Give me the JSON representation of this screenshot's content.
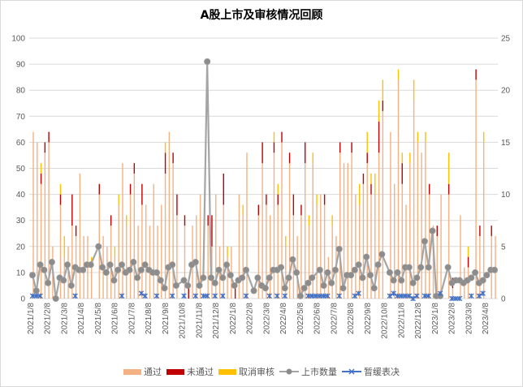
{
  "chart_data": {
    "type": "bar",
    "title": "A股上市及审核情况回顾",
    "left_axis": {
      "ticks": [
        "0",
        "10",
        "20",
        "30",
        "40",
        "50",
        "60",
        "70",
        "80",
        "90",
        "100"
      ],
      "range": [
        0,
        100
      ]
    },
    "right_axis": {
      "ticks": [
        "0",
        "5",
        "10",
        "15",
        "20",
        "25"
      ],
      "range": [
        0,
        25
      ]
    },
    "x_tick_labels": [
      "2021/1/8",
      "2021/2/8",
      "2021/3/8",
      "2021/4/8",
      "2021/5/8",
      "2021/6/8",
      "2021/7/8",
      "2021/8/8",
      "2021/9/8",
      "2021/10/8",
      "2021/11/8",
      "2021/12/8",
      "2022/1/8",
      "2022/2/8",
      "2022/3/8",
      "2022/4/8",
      "2022/5/8",
      "2022/6/8",
      "2022/7/8",
      "2022/8/8",
      "2022/9/8",
      "2022/10/8",
      "2022/11/8",
      "2022/12/8",
      "2023/1/8",
      "2023/2/8",
      "2023/3/8",
      "2023/4/8"
    ],
    "legend": [
      "通过",
      "未通过",
      "取消审核",
      "上市数量",
      "暂缓表决"
    ],
    "legend_placement": "bottom",
    "grid": true,
    "colors": {
      "pass": "#F4B183",
      "fail": "#C00000",
      "cancel": "#FFC000",
      "listed": "#A5A5A5",
      "listed_marker": "#8C8C8C",
      "suspended": "#4472C4"
    },
    "series": [
      {
        "name": "通过",
        "axis": "right",
        "stack": true,
        "values": [
          16,
          15,
          11,
          14,
          15,
          5,
          0,
          9,
          4,
          5,
          7,
          6,
          12,
          6,
          6,
          3,
          0,
          10,
          6,
          5,
          7,
          4,
          9,
          13,
          7,
          10,
          12,
          7,
          9,
          9,
          7,
          11,
          7,
          9,
          12,
          16,
          13,
          8,
          0,
          7,
          0,
          7,
          8,
          10,
          0,
          7,
          5,
          10,
          5,
          9,
          4,
          5,
          0,
          10,
          8,
          14,
          0,
          0,
          8,
          13,
          9,
          8,
          14,
          9,
          15,
          5,
          13,
          8,
          6,
          8,
          13,
          7,
          13,
          9,
          10,
          9,
          4,
          7,
          6,
          14,
          13,
          13,
          14,
          10,
          9,
          11,
          13,
          10,
          10,
          14,
          18,
          0,
          16,
          11,
          21,
          11,
          9,
          13,
          19,
          15,
          14,
          15,
          10,
          7,
          6,
          10,
          0,
          10,
          1,
          0,
          8,
          3,
          3,
          0,
          21,
          6,
          15,
          0,
          6,
          6
        ]
      },
      {
        "name": "未通过",
        "axis": "right",
        "stack": true,
        "values": [
          0,
          0,
          1,
          1,
          1,
          0,
          0,
          1,
          0,
          0,
          3,
          1,
          0,
          0,
          0,
          0,
          0,
          1,
          0,
          0,
          1,
          0,
          0,
          0,
          0,
          1,
          1,
          0,
          2,
          0,
          0,
          0,
          0,
          0,
          2,
          0,
          1,
          2,
          0,
          1,
          1,
          0,
          0,
          0,
          0,
          1,
          3,
          0,
          0,
          3,
          0,
          0,
          1,
          0,
          0,
          0,
          0,
          0,
          1,
          2,
          1,
          0,
          1,
          1,
          1,
          0,
          1,
          2,
          0,
          1,
          2,
          0,
          0,
          0,
          0,
          1,
          0,
          0,
          0,
          1,
          0,
          0,
          1,
          0,
          0,
          1,
          1,
          1,
          0,
          3,
          1,
          0,
          0,
          0,
          0,
          2,
          0,
          0,
          0,
          0,
          0,
          0,
          1,
          0,
          1,
          0,
          0,
          1,
          1,
          0,
          0,
          0,
          1,
          0,
          1,
          1,
          0,
          0,
          1,
          0
        ]
      },
      {
        "name": "取消审核",
        "axis": "right",
        "stack": true,
        "values": [
          0,
          0,
          1,
          0,
          0,
          0,
          0,
          1,
          2,
          0,
          0,
          0,
          0,
          0,
          0,
          1,
          0,
          0,
          0,
          0,
          0,
          1,
          1,
          0,
          1,
          0,
          0,
          0,
          0,
          0,
          0,
          0,
          0,
          0,
          1,
          0,
          0,
          0,
          0,
          0,
          0,
          0,
          0,
          0,
          0,
          0,
          0,
          0,
          0,
          0,
          1,
          0,
          0,
          0,
          1,
          0,
          0,
          0,
          0,
          0,
          0,
          0,
          1,
          1,
          0,
          1,
          0,
          0,
          0,
          0,
          0,
          1,
          1,
          1,
          0,
          0,
          0,
          1,
          0,
          0,
          0,
          0,
          0,
          0,
          2,
          0,
          2,
          1,
          2,
          2,
          2,
          0,
          0,
          0,
          1,
          1,
          0,
          1,
          2,
          1,
          0,
          1,
          0,
          0,
          0,
          0,
          0,
          3,
          0,
          0,
          0,
          0,
          1,
          0,
          0,
          0,
          1,
          0,
          0,
          0
        ]
      },
      {
        "name": "上市数量",
        "type": "line",
        "axis": "left",
        "values": [
          9,
          3,
          13,
          11,
          6,
          14,
          0,
          8,
          7,
          13,
          5,
          12,
          11,
          11,
          13,
          13,
          null,
          20,
          12,
          10,
          13,
          7,
          11,
          13,
          10,
          11,
          14,
          8,
          11,
          13,
          11,
          10,
          10,
          7,
          4,
          12,
          13,
          5,
          null,
          7,
          5,
          13,
          14,
          5,
          8,
          91,
          8,
          6,
          11,
          8,
          13,
          9,
          5,
          7,
          8,
          11,
          null,
          3,
          8,
          5,
          4,
          8,
          11,
          11,
          12,
          4,
          8,
          15,
          10,
          1,
          4,
          6,
          8,
          null,
          11,
          5,
          10,
          6,
          11,
          19,
          4,
          9,
          9,
          11,
          13,
          8,
          16,
          9,
          4,
          13,
          17,
          null,
          10,
          7,
          10,
          7,
          12,
          12,
          6,
          8,
          12,
          22,
          12,
          26,
          1,
          1,
          null,
          12,
          6,
          7,
          7,
          6,
          7,
          8,
          10,
          6,
          7,
          9,
          11,
          11
        ]
      },
      {
        "name": "暂缓表决",
        "type": "line",
        "axis": "left",
        "values": [
          1,
          1,
          1,
          null,
          null,
          null,
          null,
          null,
          null,
          null,
          null,
          1,
          null,
          null,
          null,
          null,
          null,
          null,
          null,
          null,
          null,
          null,
          null,
          1,
          null,
          null,
          null,
          null,
          2,
          1,
          null,
          null,
          1,
          null,
          null,
          null,
          1,
          null,
          null,
          1,
          null,
          null,
          1,
          null,
          1,
          1,
          null,
          1,
          null,
          1,
          null,
          null,
          null,
          null,
          null,
          1,
          null,
          null,
          null,
          null,
          null,
          1,
          null,
          1,
          null,
          1,
          null,
          null,
          null,
          null,
          null,
          1,
          1,
          1,
          1,
          1,
          1,
          null,
          null,
          1,
          null,
          null,
          null,
          1,
          2,
          null,
          null,
          null,
          null,
          null,
          null,
          null,
          1,
          2,
          1,
          1,
          1,
          1,
          0,
          1,
          null,
          1,
          1,
          null,
          null,
          2,
          null,
          null,
          0,
          0,
          0,
          null,
          null,
          1,
          null,
          1,
          2,
          null,
          null,
          null
        ]
      }
    ]
  }
}
